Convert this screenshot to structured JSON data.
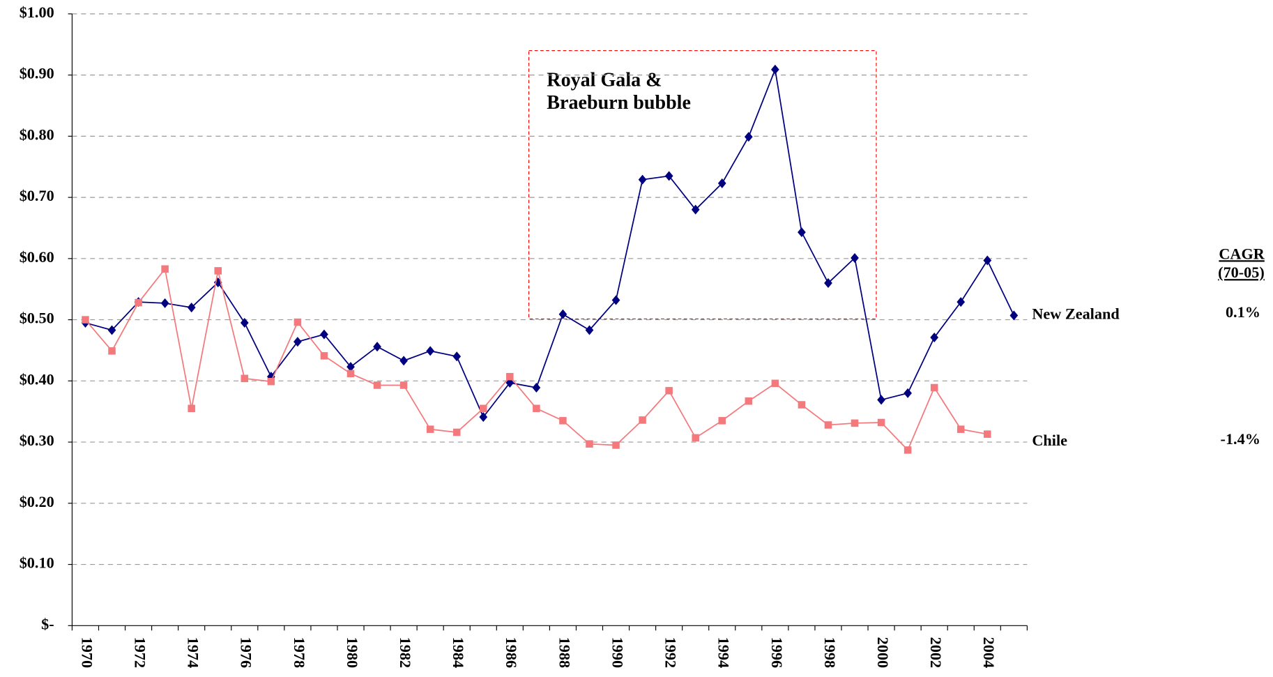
{
  "chart_data": {
    "type": "line",
    "categories": [
      "1970",
      null,
      "1972",
      null,
      "1974",
      null,
      "1976",
      null,
      "1978",
      null,
      "1980",
      null,
      "1982",
      null,
      "1984",
      null,
      "1986",
      null,
      "1988",
      null,
      "1990",
      null,
      "1992",
      null,
      "1994",
      null,
      "1996",
      null,
      "1998",
      null,
      "2000",
      null,
      "2002",
      null,
      "2004",
      null
    ],
    "series": [
      {
        "name": "New Zealand",
        "color": "#000080",
        "marker": "diamond",
        "cagr": "0.1%",
        "cagr_color": "#000000",
        "values": [
          0.495,
          0.483,
          0.529,
          0.527,
          0.52,
          0.561,
          0.495,
          0.407,
          0.464,
          0.476,
          0.423,
          0.456,
          0.433,
          0.449,
          0.44,
          0.341,
          0.397,
          0.389,
          0.509,
          0.483,
          0.532,
          0.729,
          0.735,
          0.68,
          0.723,
          0.799,
          0.909,
          0.643,
          0.56,
          0.601,
          0.369,
          0.38,
          0.471,
          0.529,
          0.597,
          0.507
        ]
      },
      {
        "name": "Chile",
        "color": "#f4797c",
        "marker": "square",
        "cagr": "-1.4%",
        "cagr_color": "#ff0000",
        "values": [
          0.5,
          0.449,
          0.528,
          0.583,
          0.355,
          0.58,
          0.404,
          0.399,
          0.496,
          0.441,
          0.412,
          0.393,
          0.393,
          0.321,
          0.316,
          0.355,
          0.407,
          0.355,
          0.335,
          0.297,
          0.295,
          0.336,
          0.384,
          0.307,
          0.335,
          0.367,
          0.396,
          0.361,
          0.328,
          0.331,
          0.332,
          0.287,
          0.389,
          0.321,
          0.313,
          null
        ]
      }
    ],
    "cagr_header": [
      "CAGR",
      "(70-05)"
    ],
    "annotation": {
      "lines": [
        "Royal Gala &",
        "Braeburn bubble"
      ],
      "color": "#ff0000"
    },
    "ylim": [
      0,
      1
    ],
    "yticks": [
      {
        "value": 0,
        "label": "$-"
      },
      {
        "value": 0.1,
        "label": "$0.10"
      },
      {
        "value": 0.2,
        "label": "$0.20"
      },
      {
        "value": 0.3,
        "label": "$0.30"
      },
      {
        "value": 0.4,
        "label": "$0.40"
      },
      {
        "value": 0.5,
        "label": "$0.50"
      },
      {
        "value": 0.6,
        "label": "$0.60"
      },
      {
        "value": 0.7,
        "label": "$0.70"
      },
      {
        "value": 0.8,
        "label": "$0.80"
      },
      {
        "value": 0.9,
        "label": "$0.90"
      },
      {
        "value": 1,
        "label": "$1.00"
      }
    ],
    "grid": true
  }
}
